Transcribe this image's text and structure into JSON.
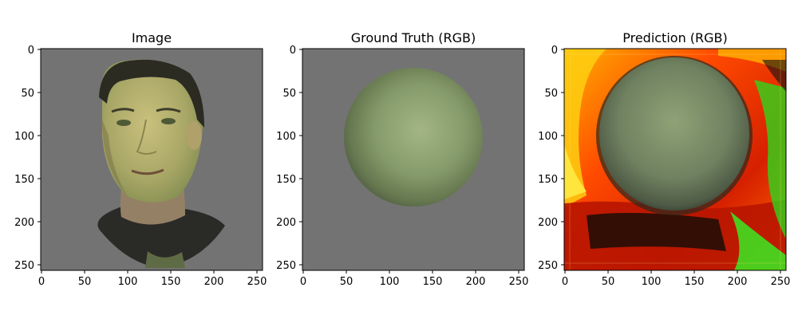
{
  "panels": [
    {
      "title": "Image",
      "x_ticks": [
        "0",
        "50",
        "100",
        "150",
        "200",
        "250"
      ],
      "y_ticks": [
        "0",
        "50",
        "100",
        "150",
        "200",
        "250"
      ],
      "background": "#737373",
      "content": "face-render"
    },
    {
      "title": "Ground Truth (RGB)",
      "x_ticks": [
        "0",
        "50",
        "100",
        "150",
        "200",
        "250"
      ],
      "y_ticks": [
        "0",
        "50",
        "100",
        "150",
        "200",
        "250"
      ],
      "background": "#737373",
      "content": "green-sphere"
    },
    {
      "title": "Prediction (RGB)",
      "x_ticks": [
        "0",
        "50",
        "100",
        "150",
        "200",
        "250"
      ],
      "y_ticks": [
        "0",
        "50",
        "100",
        "150",
        "200",
        "250"
      ],
      "background": "#cc2a00",
      "content": "noisy-sphere-prediction"
    }
  ],
  "axis_range": [
    0,
    256
  ],
  "colors": {
    "gray_bg": "#737373",
    "sphere_light": "#9caf7d",
    "sphere_dark": "#4c5a40",
    "pred_red": "#cc1f00",
    "pred_orange": "#ff7a00",
    "pred_yellow": "#ffdf00",
    "pred_green": "#33e01a"
  }
}
